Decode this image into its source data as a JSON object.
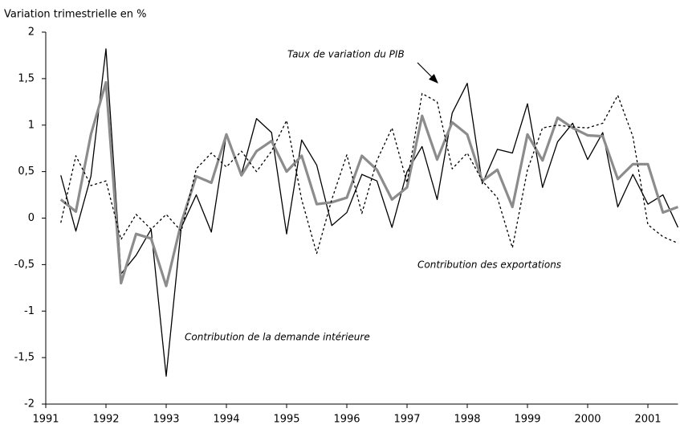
{
  "chart_data": {
    "type": "line",
    "y_label": "Variation trimestrielle en %",
    "annotations": [
      "Taux de variation du PIB",
      "Contribution des exportations",
      "Contribution de la demande intérieure"
    ],
    "x": [
      1991.25,
      1991.5,
      1991.75,
      1992,
      1992.25,
      1992.5,
      1992.75,
      1993,
      1993.25,
      1993.5,
      1993.75,
      1994,
      1994.25,
      1994.5,
      1994.75,
      1995,
      1995.25,
      1995.5,
      1995.75,
      1996,
      1996.25,
      1996.5,
      1996.75,
      1997,
      1997.25,
      1997.5,
      1997.75,
      1998,
      1998.25,
      1998.5,
      1998.75,
      1999,
      1999.25,
      1999.5,
      1999.75,
      2000,
      2000.25,
      2000.5,
      2000.75,
      2001,
      2001.25,
      2001.5
    ],
    "series": [
      {
        "color": "#000000",
        "style": "solid",
        "width": 1.3,
        "values": [
          0.46,
          -0.14,
          0.45,
          1.82,
          -0.6,
          -0.4,
          -0.12,
          -1.7,
          -0.1,
          0.25,
          -0.15,
          0.9,
          0.47,
          1.07,
          0.92,
          -0.17,
          0.84,
          0.57,
          -0.08,
          0.06,
          0.47,
          0.4,
          -0.1,
          0.5,
          0.77,
          0.2,
          1.13,
          1.45,
          0.37,
          0.74,
          0.7,
          1.23,
          0.33,
          0.82,
          1.02,
          0.63,
          0.92,
          0.12,
          0.47,
          0.15,
          0.25,
          -0.1
        ]
      },
      {
        "color": "#8c8c8c",
        "style": "solid",
        "width": 3.2,
        "values": [
          0.2,
          0.07,
          0.9,
          1.46,
          -0.7,
          -0.17,
          -0.22,
          -0.73,
          -0.05,
          0.45,
          0.38,
          0.9,
          0.46,
          0.72,
          0.83,
          0.5,
          0.67,
          0.15,
          0.17,
          0.22,
          0.67,
          0.52,
          0.2,
          0.33,
          1.1,
          0.63,
          1.03,
          0.9,
          0.4,
          0.52,
          0.12,
          0.9,
          0.62,
          1.08,
          0.97,
          0.89,
          0.88,
          0.42,
          0.58,
          0.58,
          0.06,
          0.12
        ]
      },
      {
        "color": "#000000",
        "style": "dashed",
        "width": 1.3,
        "values": [
          -0.05,
          0.67,
          0.35,
          0.4,
          -0.23,
          0.04,
          -0.12,
          0.04,
          -0.14,
          0.53,
          0.7,
          0.55,
          0.72,
          0.5,
          0.72,
          1.05,
          0.2,
          -0.38,
          0.2,
          0.68,
          0.05,
          0.62,
          0.97,
          0.38,
          1.34,
          1.25,
          0.53,
          0.7,
          0.4,
          0.22,
          -0.32,
          0.52,
          0.97,
          1.0,
          0.98,
          0.97,
          1.02,
          1.32,
          0.88,
          -0.07,
          -0.2,
          -0.27
        ]
      }
    ],
    "xlim": [
      1991,
      2001.5
    ],
    "xticks": [
      1991,
      1992,
      1993,
      1994,
      1995,
      1996,
      1997,
      1998,
      1999,
      2000,
      2001
    ],
    "ylim": [
      -2,
      2
    ],
    "yticks": [
      -2,
      {
        "value": -1.5,
        "label": "-1,5"
      },
      -1,
      {
        "value": -0.5,
        "label": "-0,5"
      },
      0,
      {
        "value": 0.5,
        "label": "0,5"
      },
      1,
      {
        "value": 1.5,
        "label": "1,5"
      },
      2
    ]
  }
}
